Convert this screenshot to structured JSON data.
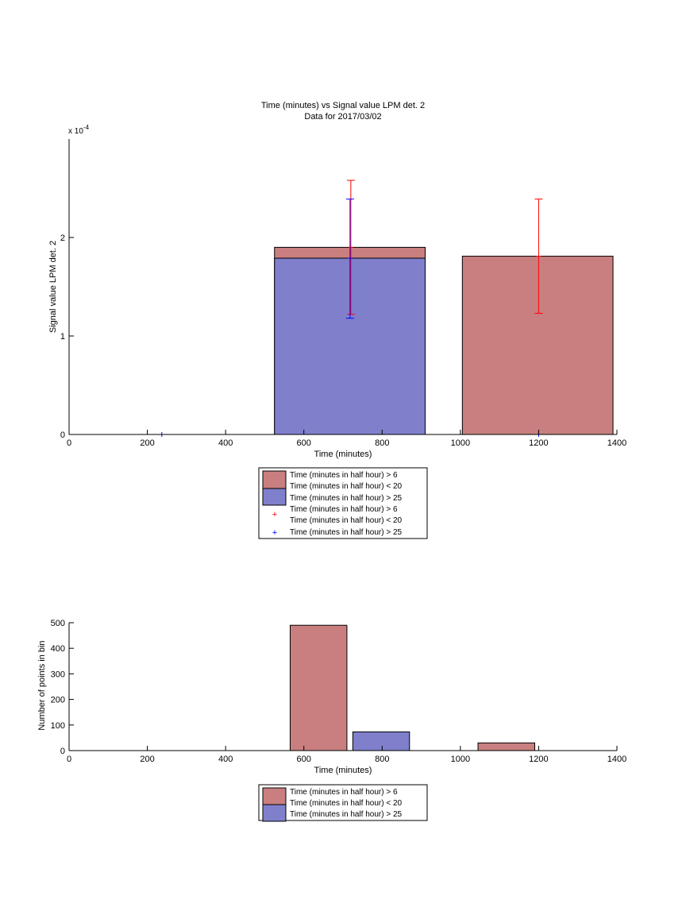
{
  "colors": {
    "red_fill": "#c97f7f",
    "blue_fill": "#7f7fcc",
    "red_marker": "#ff0000",
    "blue_marker": "#0000ff",
    "axis": "#000000"
  },
  "chart_data": [
    {
      "type": "bar",
      "title": "Time (minutes) vs Signal value LPM det. 2",
      "subtitle": "Data for 2017/03/02",
      "xlabel": "Time (minutes)",
      "ylabel": "Signal value LPM det. 2",
      "exponent_label": "x 10",
      "exponent_power": "-4",
      "xlim": [
        0,
        1400
      ],
      "ylim": [
        0,
        3.0
      ],
      "xticks": [
        "0",
        "200",
        "400",
        "600",
        "800",
        "1000",
        "1200",
        "1400"
      ],
      "xtick_values": [
        0,
        200,
        400,
        600,
        800,
        1000,
        1200,
        1400
      ],
      "yticks": [
        "0",
        "1",
        "2"
      ],
      "ytick_values": [
        0,
        1,
        2
      ],
      "grid": false,
      "legend_placement": "below",
      "series": [
        {
          "name": "Time (minutes in half hour) > 6 Time (minutes in half hour) < 20",
          "color": "#c97f7f",
          "bars": [
            {
              "x0": 525,
              "x1": 910,
              "value": 1.9
            },
            {
              "x0": 1005,
              "x1": 1390,
              "value": 1.81
            }
          ]
        },
        {
          "name": "Time (minutes in half hour) > 25",
          "color": "#7f7fcc",
          "bars": [
            {
              "x0": 525,
              "x1": 910,
              "value": 1.79
            }
          ]
        }
      ],
      "errorbars": [
        {
          "series": "red",
          "x": 720,
          "center": 1.9,
          "low": 1.22,
          "high": 2.58,
          "color": "#ff0000"
        },
        {
          "series": "blue",
          "x": 718,
          "center": 1.79,
          "low": 1.18,
          "high": 2.39,
          "color": "#0000ff"
        },
        {
          "series": "red",
          "x": 1200,
          "center": 1.81,
          "low": 1.23,
          "high": 2.39,
          "color": "#ff0000"
        }
      ],
      "markers": [
        {
          "x": 237,
          "y": 0,
          "color": "#0000ff"
        },
        {
          "x": 1200,
          "y": 0,
          "color": "#0000ff"
        }
      ],
      "legend": [
        {
          "kind": "patch",
          "color": "#c97f7f",
          "lines": [
            "Time (minutes in half hour) > 6",
            "Time (minutes in half hour) < 20"
          ]
        },
        {
          "kind": "patch",
          "color": "#7f7fcc",
          "lines": [
            "Time (minutes in half hour) > 25"
          ]
        },
        {
          "kind": "marker",
          "color": "#ff0000",
          "lines": [
            "Time (minutes in half hour) > 6",
            "Time (minutes in half hour) < 20"
          ]
        },
        {
          "kind": "marker",
          "color": "#0000ff",
          "lines": [
            "Time (minutes in half hour) > 25"
          ]
        }
      ]
    },
    {
      "type": "bar",
      "title": "",
      "xlabel": "Time (minutes)",
      "ylabel": "Number of points in bin",
      "xlim": [
        0,
        1400
      ],
      "ylim": [
        0,
        500
      ],
      "xticks": [
        "0",
        "200",
        "400",
        "600",
        "800",
        "1000",
        "1200",
        "1400"
      ],
      "xtick_values": [
        0,
        200,
        400,
        600,
        800,
        1000,
        1200,
        1400
      ],
      "yticks": [
        "0",
        "100",
        "200",
        "300",
        "400",
        "500"
      ],
      "ytick_values": [
        0,
        100,
        200,
        300,
        400,
        500
      ],
      "grid": false,
      "legend_placement": "below",
      "series": [
        {
          "name": "Time (minutes in half hour) > 6 Time (minutes in half hour) < 20",
          "color": "#c97f7f",
          "bars": [
            {
              "x0": 565,
              "x1": 710,
              "value": 490
            },
            {
              "x0": 1045,
              "x1": 1190,
              "value": 30
            }
          ]
        },
        {
          "name": "Time (minutes in half hour) > 25",
          "color": "#7f7fcc",
          "bars": [
            {
              "x0": 725,
              "x1": 870,
              "value": 73
            }
          ]
        }
      ],
      "legend": [
        {
          "kind": "patch",
          "color": "#c97f7f",
          "lines": [
            "Time (minutes in half hour) > 6",
            "Time (minutes in half hour) < 20"
          ]
        },
        {
          "kind": "patch",
          "color": "#7f7fcc",
          "lines": [
            "Time (minutes in half hour) > 25"
          ]
        }
      ]
    }
  ]
}
